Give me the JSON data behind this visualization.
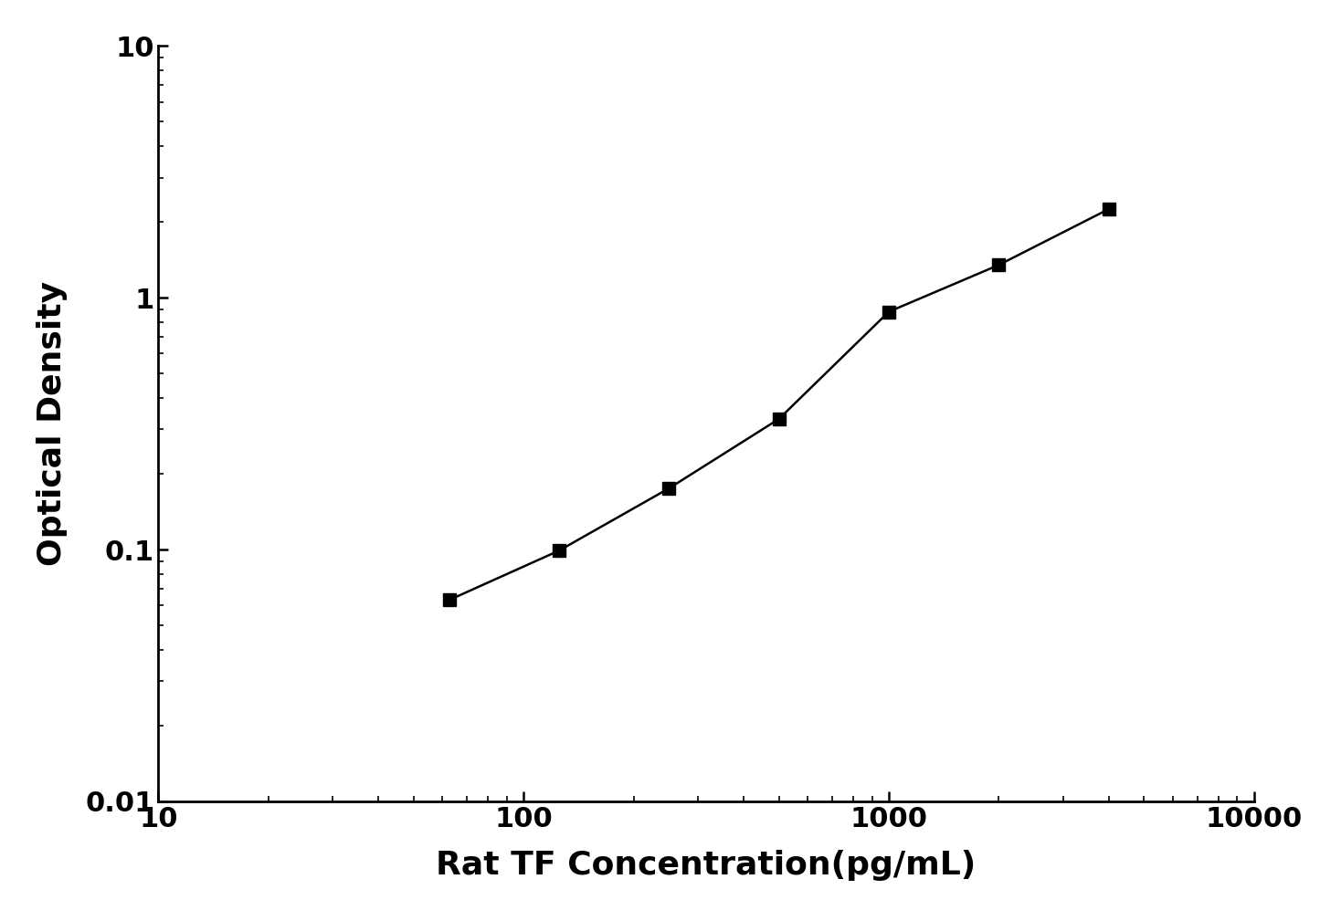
{
  "x": [
    62.5,
    125,
    250,
    500,
    1000,
    2000,
    4000
  ],
  "y": [
    0.063,
    0.099,
    0.175,
    0.33,
    0.88,
    1.35,
    2.25
  ],
  "xlim": [
    10,
    10000
  ],
  "ylim": [
    0.01,
    10
  ],
  "xlabel": "Rat TF Concentration(pg/mL)",
  "ylabel": "Optical Density",
  "line_color": "#000000",
  "marker": "s",
  "marker_color": "#000000",
  "marker_size": 10,
  "linewidth": 1.8,
  "background_color": "#ffffff",
  "xlabel_fontsize": 26,
  "ylabel_fontsize": 26,
  "tick_fontsize": 22,
  "font_weight": "bold",
  "ytick_labels": [
    "0.01",
    "0.1",
    "1",
    "10"
  ],
  "ytick_values": [
    0.01,
    0.1,
    1,
    10
  ],
  "xtick_labels": [
    "10",
    "100",
    "1000",
    "10000"
  ],
  "xtick_values": [
    10,
    100,
    1000,
    10000
  ]
}
